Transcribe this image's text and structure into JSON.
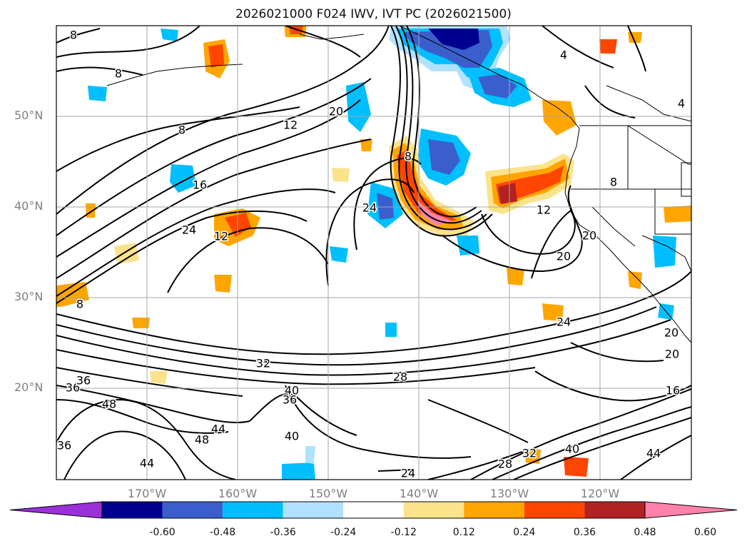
{
  "title": "2026021000 F024 IWV, IVT PC (2026021500)",
  "lat_labels": [
    "50°N",
    "40°N",
    "30°N",
    "20°N"
  ],
  "lon_labels": [
    "170°W",
    "160°W",
    "150°W",
    "140°W",
    "130°W",
    "120°W"
  ],
  "colorbar": {
    "ticks": [
      "-0.60",
      "-0.48",
      "-0.36",
      "-0.24",
      "-0.12",
      "0.12",
      "0.24",
      "0.36",
      "0.48",
      "0.60"
    ],
    "colors": [
      "#9b30d9",
      "#000090",
      "#3a5fcd",
      "#00bfff",
      "#b0e2ff",
      "#ffffff",
      "#fbe38c",
      "#ffa500",
      "#ff4500",
      "#b22222",
      "#ff82ab"
    ]
  },
  "contour_labels": [
    "8",
    "8",
    "8",
    "12",
    "16",
    "20",
    "24",
    "8",
    "24",
    "12",
    "4",
    "4",
    "8",
    "12",
    "20",
    "20",
    "24",
    "20",
    "20",
    "8",
    "32",
    "28",
    "36",
    "36",
    "40",
    "36",
    "48",
    "44",
    "48",
    "40",
    "44",
    "16",
    "44",
    "40",
    "32",
    "28",
    "24",
    "36"
  ]
}
